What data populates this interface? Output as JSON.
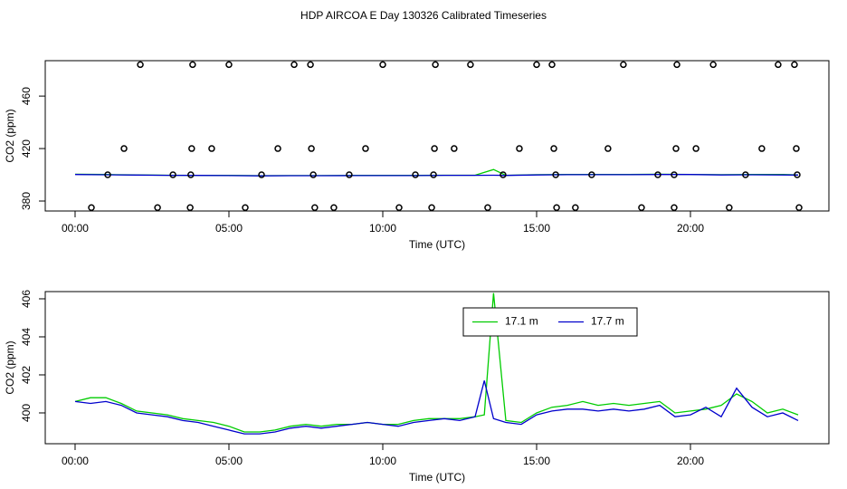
{
  "title": "HDP AIRCOA E  Day 130326  Calibrated Timeseries",
  "chart_data": [
    {
      "type": "line",
      "xlabel": "Time (UTC)",
      "ylabel": "CO2 (ppm)",
      "xlim": [
        -0.97,
        24.5
      ],
      "ylim": [
        372.4,
        487
      ],
      "xticks": [
        {
          "value": 0,
          "label": "00:00"
        },
        {
          "value": 5,
          "label": "05:00"
        },
        {
          "value": 10,
          "label": "10:00"
        },
        {
          "value": 15,
          "label": "15:00"
        },
        {
          "value": 20,
          "label": "20:00"
        }
      ],
      "yticks": [
        380,
        420,
        460
      ],
      "x": [
        0,
        1,
        2,
        3,
        4,
        5,
        6,
        7,
        8,
        9,
        10,
        11,
        12,
        13,
        13.6,
        14,
        15,
        16,
        17,
        18,
        19,
        20,
        21,
        22,
        23,
        23.5
      ],
      "series": [
        {
          "color": "#00cc00",
          "values": [
            400.4,
            400.2,
            399.9,
            399.7,
            399.6,
            399.5,
            399.3,
            399.4,
            399.4,
            399.5,
            399.5,
            399.5,
            399.7,
            399.7,
            404.0,
            399.6,
            400.1,
            400.3,
            400.3,
            400.3,
            400.4,
            400.3,
            400.1,
            400.2,
            400.2,
            399.9
          ]
        },
        {
          "color": "#0000cc",
          "values": [
            400.2,
            400.0,
            399.8,
            399.6,
            399.5,
            399.4,
            399.2,
            399.3,
            399.3,
            399.4,
            399.4,
            399.4,
            399.6,
            399.6,
            399.7,
            399.5,
            399.9,
            400.1,
            400.1,
            400.1,
            400.2,
            400.2,
            399.9,
            400.0,
            399.9,
            399.8
          ]
        }
      ],
      "points": {
        "color": "#000000",
        "x": [
          2.12,
          3.82,
          5.0,
          7.12,
          7.65,
          10.0,
          11.71,
          12.85,
          15.0,
          15.5,
          17.82,
          19.56,
          20.74,
          22.85,
          23.38,
          1.59,
          3.79,
          4.44,
          6.59,
          7.68,
          9.44,
          11.68,
          12.32,
          14.44,
          15.56,
          17.32,
          19.53,
          20.18,
          22.32,
          23.44,
          1.06,
          3.18,
          3.76,
          6.06,
          7.74,
          8.91,
          11.06,
          11.65,
          13.91,
          15.62,
          16.79,
          18.94,
          19.47,
          21.79,
          23.47,
          0.53,
          2.68,
          3.74,
          5.53,
          7.79,
          8.41,
          10.53,
          11.59,
          13.41,
          15.65,
          16.26,
          18.41,
          19.47,
          21.26,
          23.53
        ],
        "values": [
          484,
          484,
          484,
          484,
          484,
          484,
          484,
          484,
          484,
          484,
          484,
          484,
          484,
          484,
          484,
          420,
          420,
          420,
          420,
          420,
          420,
          420,
          420,
          420,
          420,
          420,
          420,
          420,
          420,
          420,
          400,
          400,
          400,
          400,
          400,
          400,
          400,
          400,
          400,
          400,
          400,
          400,
          400,
          400,
          400,
          375,
          375,
          375,
          375,
          375,
          375,
          375,
          375,
          375,
          375,
          375,
          375,
          375,
          375,
          375
        ]
      }
    },
    {
      "type": "line",
      "xlabel": "Time (UTC)",
      "ylabel": "CO2 (ppm)",
      "xlim": [
        -0.97,
        24.5
      ],
      "ylim": [
        398.38,
        406.38
      ],
      "xticks": [
        {
          "value": 0,
          "label": "00:00"
        },
        {
          "value": 5,
          "label": "05:00"
        },
        {
          "value": 10,
          "label": "10:00"
        },
        {
          "value": 15,
          "label": "15:00"
        },
        {
          "value": 20,
          "label": "20:00"
        }
      ],
      "yticks": [
        400,
        402,
        404,
        406
      ],
      "legend": "top",
      "x": [
        0,
        0.5,
        1,
        1.5,
        2,
        2.5,
        3,
        3.5,
        4,
        4.5,
        5,
        5.5,
        6,
        6.5,
        7,
        7.5,
        8,
        8.5,
        9,
        9.5,
        10,
        10.5,
        11,
        11.5,
        12,
        12.5,
        13,
        13.3,
        13.6,
        14,
        14.5,
        15,
        15.5,
        16,
        16.5,
        17,
        17.5,
        18,
        18.5,
        19,
        19.5,
        20,
        20.5,
        21,
        21.5,
        22,
        22.5,
        23,
        23.5
      ],
      "series": [
        {
          "name": "17.1 m",
          "color": "#00cc00",
          "values": [
            400.6,
            400.8,
            400.8,
            400.5,
            400.1,
            400.0,
            399.9,
            399.7,
            399.6,
            399.5,
            399.3,
            399.0,
            399.0,
            399.1,
            399.3,
            399.4,
            399.3,
            399.4,
            399.4,
            399.5,
            399.4,
            399.4,
            399.6,
            399.7,
            399.7,
            399.7,
            399.8,
            399.9,
            406.3,
            399.6,
            399.5,
            400.0,
            400.3,
            400.4,
            400.6,
            400.4,
            400.5,
            400.4,
            400.5,
            400.6,
            400.0,
            400.1,
            400.2,
            400.4,
            401.0,
            400.6,
            400.0,
            400.2,
            399.9
          ]
        },
        {
          "name": "17.7 m",
          "color": "#0000cc",
          "values": [
            400.6,
            400.5,
            400.6,
            400.4,
            400.0,
            399.9,
            399.8,
            399.6,
            399.5,
            399.3,
            399.1,
            398.9,
            398.9,
            399.0,
            399.2,
            399.3,
            399.2,
            399.3,
            399.4,
            399.5,
            399.4,
            399.3,
            399.5,
            399.6,
            399.7,
            399.6,
            399.8,
            401.7,
            399.7,
            399.5,
            399.4,
            399.9,
            400.1,
            400.2,
            400.2,
            400.1,
            400.2,
            400.1,
            400.2,
            400.4,
            399.8,
            399.9,
            400.3,
            399.8,
            401.3,
            400.3,
            399.8,
            400.0,
            399.6
          ]
        }
      ]
    }
  ]
}
